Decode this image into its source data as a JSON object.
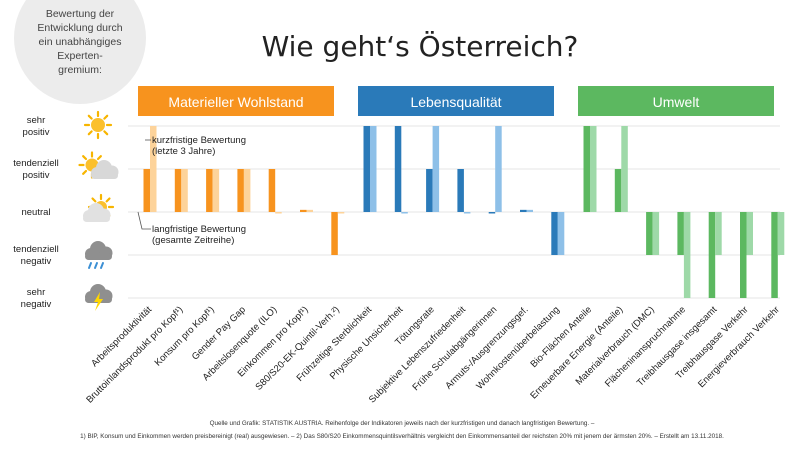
{
  "title": "Wie geht‘s Österreich?",
  "info_circle": {
    "lines": [
      "Bewertung der",
      "Entwicklung durch",
      "ein unabhängiges",
      "Experten-",
      "gremium:"
    ]
  },
  "scale": [
    {
      "lines": [
        "sehr",
        "positiv"
      ],
      "icon": "sun-icon",
      "value": 2
    },
    {
      "lines": [
        "tendenziell",
        "positiv"
      ],
      "icon": "sun-cloud-icon",
      "value": 1
    },
    {
      "lines": [
        "neutral"
      ],
      "icon": "cloud-sun-icon",
      "value": 0
    },
    {
      "lines": [
        "tendenziell",
        "negativ"
      ],
      "icon": "rain-cloud-icon",
      "value": -1
    },
    {
      "lines": [
        "sehr",
        "negativ"
      ],
      "icon": "thunder-cloud-icon",
      "value": -2
    }
  ],
  "annotations": {
    "short_term": [
      "kurzfristige Bewertung",
      "(letzte 3 Jahre)"
    ],
    "long_term": [
      "langfristige Bewertung",
      "(gesamte Zeitreihe)"
    ]
  },
  "footer": {
    "line1": "Quelle und Grafik: STATISTIK AUSTRIA. Reihenfolge der Indikatoren jeweils nach der kurzfristigen und danach langfristigen Bewertung. –",
    "line2": "1) BIP, Konsum und Einkommen werden preisbereinigt (real) ausgewiesen. – 2) Das S80/S20 Einkommensquintilsverhältnis vergleicht den Einkommensanteil der reichsten 20% mit jenem der ärmsten 20%. – Erstellt am 13.11.2018."
  },
  "colors": {
    "Materieller Wohlstand": {
      "dark": "#f7931e",
      "light": "#fdd39a"
    },
    "Lebensqualität": {
      "dark": "#2a7ab9",
      "light": "#8ec0e8"
    },
    "Umwelt": {
      "dark": "#5cb860",
      "light": "#9ed9a8"
    }
  },
  "chart_data": {
    "type": "bar",
    "title": "Wie geht‘s Österreich?",
    "ylim": [
      -2,
      2
    ],
    "y_scale_labels": [
      "sehr negativ",
      "tendenziell negativ",
      "neutral",
      "tendenziell positiv",
      "sehr positiv"
    ],
    "series": [
      {
        "name": "langfristige Bewertung (gesamte Zeitreihe)",
        "shade": "dark"
      },
      {
        "name": "kurzfristige Bewertung (letzte 3 Jahre)",
        "shade": "light"
      }
    ],
    "groups": [
      {
        "name": "Materieller Wohlstand",
        "categories": [
          "Arbeitsproduktivität",
          "Bruttoinlandsprodukt pro Kopf¹)",
          "Konsum pro Kopf¹)",
          "Gender Pay Gap",
          "Arbeitslosenquote (ILO)",
          "Einkommen pro Kopf¹)",
          "S80/S20-EK-Quintil-Verh.²)"
        ],
        "long_term": [
          1,
          1,
          1,
          1,
          1,
          0.05,
          -1
        ],
        "short_term": [
          2,
          1,
          1,
          1,
          0,
          0.05,
          0
        ]
      },
      {
        "name": "Lebensqualität",
        "categories": [
          "Frühzeitige Sterblichkeit",
          "Physische Unsicherheit",
          "Tötungsrate",
          "Subjektive Lebenszufriedenheit",
          "Frühe Schulabgängerinnen",
          "Armuts-/Ausgrenzungsgef.",
          "Wohnkostenüberbelastung"
        ],
        "long_term": [
          2,
          2,
          1,
          1,
          0,
          0.05,
          -1
        ],
        "short_term": [
          2,
          0,
          2,
          0,
          2,
          0.05,
          -1
        ]
      },
      {
        "name": "Umwelt",
        "categories": [
          "Bio-Flächen Anteile",
          "Erneuerbare Energie (Anteile)",
          "Materialverbrauch (DMC)",
          "Flächeninanspruchnahme",
          "Treibhausgase insgesamt",
          "Treibhausgase Verkehr",
          "Energieverbrauch Verkehr"
        ],
        "long_term": [
          2,
          1,
          -1,
          -1,
          -2,
          -2,
          -2
        ],
        "short_term": [
          2,
          2,
          -1,
          -2,
          -1,
          -1,
          -1
        ]
      }
    ]
  }
}
